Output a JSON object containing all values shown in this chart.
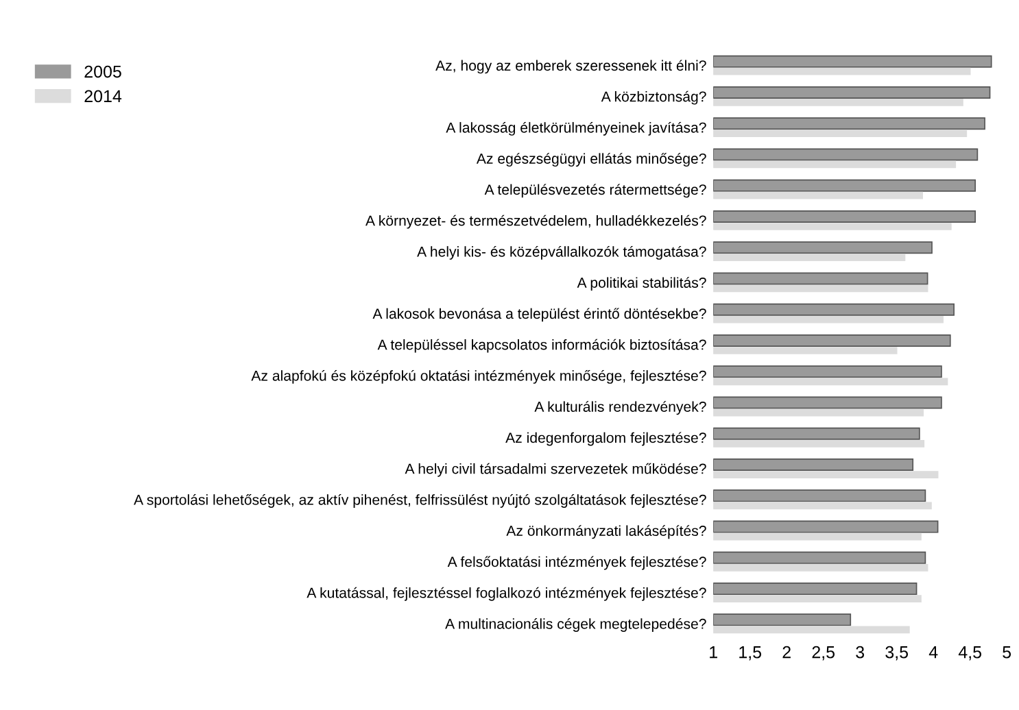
{
  "chart_data": {
    "type": "bar",
    "orientation": "horizontal",
    "categories": [
      "Az, hogy az emberek szeressenek itt élni?",
      "A közbiztonság?",
      "A lakosság életkörülményeinek javítása?",
      "Az egészségügyi ellátás minősége?",
      "A településvezetés rátermettsége?",
      "A környezet- és természetvédelem, hulladékkezelés?",
      "A helyi kis- és középvállalkozók támogatása?",
      "A politikai stabilitás?",
      "A lakosok bevonása a települést érintő döntésekbe?",
      "A településsel kapcsolatos információk biztosítása?",
      "Az alapfokú és középfokú oktatási intézmények minősége, fejlesztése?",
      "A kulturális rendezvények?",
      "Az idegenforgalom fejlesztése?",
      "A helyi civil társadalmi szervezetek működése?",
      "A sportolási lehetőségek, az aktív pihenést, felfrissülést nyújtó szolgáltatások fejlesztése?",
      "Az önkormányzati lakásépítés?",
      "A felsőoktatási intézmények fejlesztése?",
      "A kutatással, fejlesztéssel foglalkozó intézmények fejlesztése?",
      "A multinacionális cégek megtelepedése?"
    ],
    "series": [
      {
        "name": "2005",
        "color": "#9a9a9a",
        "values": [
          4.79,
          4.77,
          4.7,
          4.6,
          4.57,
          4.57,
          3.98,
          3.92,
          4.28,
          4.23,
          4.11,
          4.11,
          3.81,
          3.72,
          3.89,
          4.06,
          3.89,
          3.77,
          2.87
        ]
      },
      {
        "name": "2014",
        "color": "#dcdcdc",
        "values": [
          4.5,
          4.4,
          4.45,
          4.3,
          3.85,
          4.24,
          3.61,
          3.92,
          4.13,
          3.5,
          4.19,
          3.86,
          3.87,
          4.06,
          3.97,
          3.83,
          3.92,
          3.83,
          3.67
        ]
      }
    ],
    "xlim": [
      1,
      5
    ],
    "xticks": [
      1,
      {
        "value": 1.5,
        "label": "1,5"
      },
      2,
      {
        "value": 2.5,
        "label": "2,5"
      },
      3,
      {
        "value": 3.5,
        "label": "3,5"
      },
      4,
      {
        "value": 4.5,
        "label": "4,5"
      },
      5
    ],
    "legend": "top left",
    "grid": false
  }
}
